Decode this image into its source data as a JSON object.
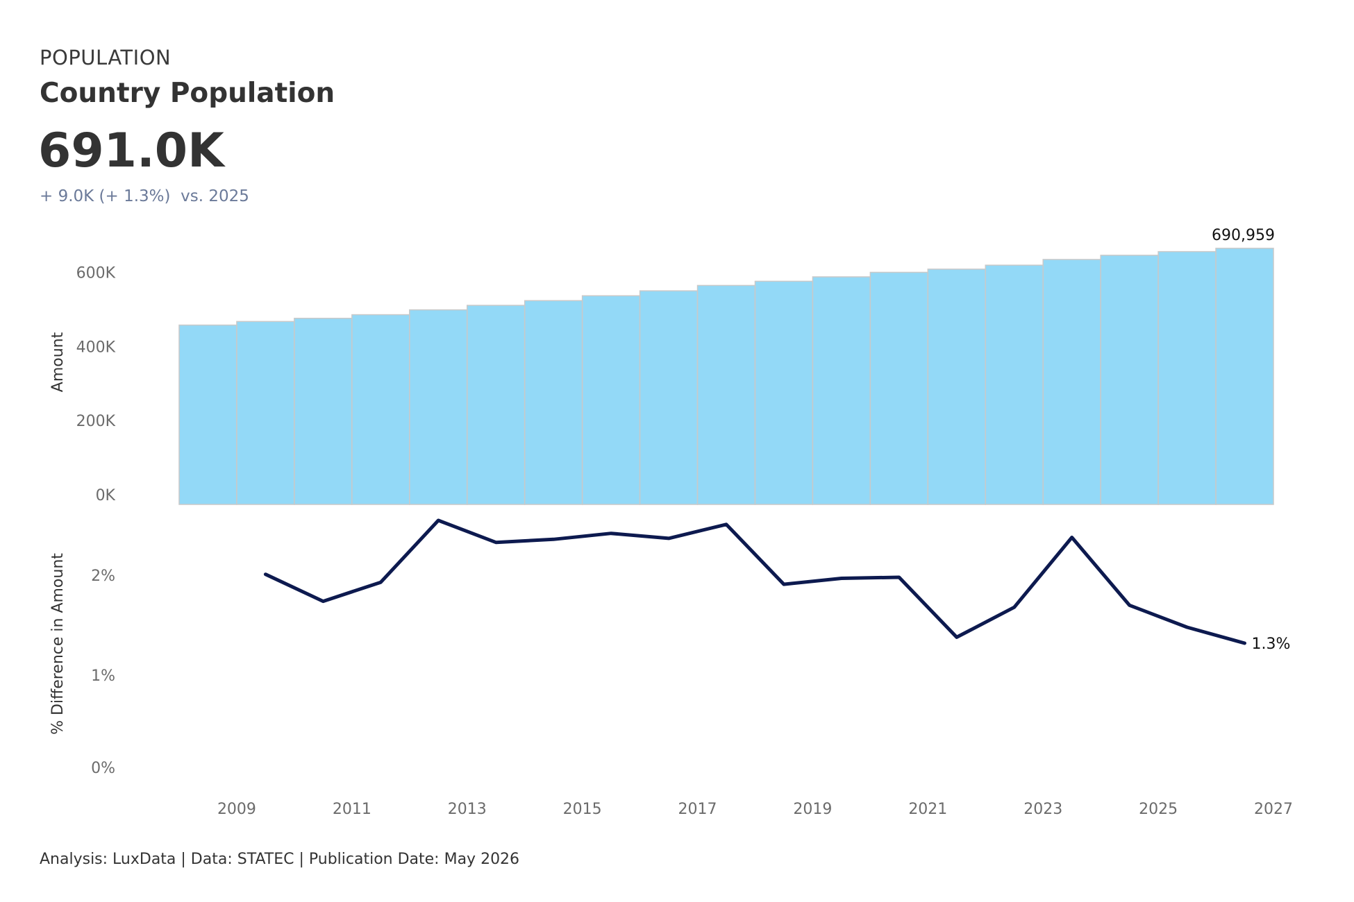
{
  "header": {
    "kicker": "POPULATION",
    "title": "Country Population",
    "kpi": "691.0K",
    "delta_change": "+ 9.0K (+ 1.3%)",
    "delta_compare": "vs. 2025"
  },
  "footer": {
    "text": "Analysis: LuxData | Data: STATEC | Publication Date: May 2026"
  },
  "colors": {
    "bar_fill": "#93d9f7",
    "bar_stroke": "#c9c9c9",
    "line": "#0d1a4f",
    "delta_text": "#6b7a99"
  },
  "chart_data": [
    {
      "type": "bar",
      "ylabel": "Amount",
      "ylim": [
        0,
        700000
      ],
      "yticks": [
        0,
        200000,
        400000,
        600000
      ],
      "ytick_labels": [
        "0K",
        "200K",
        "400K",
        "600K"
      ],
      "x": [
        2008,
        2009,
        2010,
        2011,
        2012,
        2013,
        2014,
        2015,
        2016,
        2017,
        2018,
        2019,
        2020,
        2021,
        2022,
        2023,
        2024,
        2025,
        2026
      ],
      "values": [
        483799,
        493500,
        502100,
        511800,
        524900,
        537000,
        549700,
        562900,
        576200,
        590700,
        602000,
        613900,
        626100,
        634700,
        645400,
        660800,
        672100,
        682000,
        690959
      ],
      "annotation": {
        "x": 2026,
        "text": "690,959"
      }
    },
    {
      "type": "line",
      "ylabel": "% Difference in Amount",
      "ylim": [
        0,
        2.55
      ],
      "yticks": [
        0,
        1,
        2
      ],
      "ytick_labels": [
        "0%",
        "1%",
        "2%"
      ],
      "x": [
        2009,
        2010,
        2011,
        2012,
        2013,
        2014,
        2015,
        2016,
        2017,
        2018,
        2019,
        2020,
        2021,
        2022,
        2023,
        2024,
        2025,
        2026
      ],
      "values": [
        2.01,
        1.74,
        1.93,
        2.55,
        2.33,
        2.36,
        2.42,
        2.37,
        2.51,
        1.91,
        1.97,
        1.98,
        1.38,
        1.68,
        2.38,
        1.7,
        1.48,
        1.32
      ],
      "annotation": {
        "x": 2026,
        "text": "1.3%"
      }
    }
  ],
  "x_axis": {
    "ticks": [
      2009,
      2011,
      2013,
      2015,
      2017,
      2019,
      2021,
      2023,
      2025,
      2027
    ],
    "tick_labels": [
      "2009",
      "2011",
      "2013",
      "2015",
      "2017",
      "2019",
      "2021",
      "2023",
      "2025",
      "2027"
    ]
  }
}
